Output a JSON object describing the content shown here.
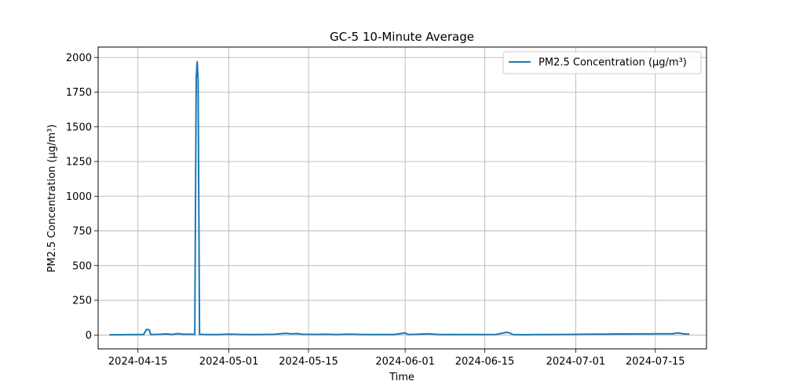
{
  "chart_data": {
    "type": "line",
    "title": "GC-5 10-Minute Average",
    "xlabel": "Time",
    "ylabel": "PM2.5 Concentration (µg/m³)",
    "xlim": [
      "2024-04-08",
      "2024-07-24"
    ],
    "ylim": [
      -100,
      2075
    ],
    "grid": true,
    "legend_position": "top-right",
    "x_ticks": [
      "2024-04-15",
      "2024-05-01",
      "2024-05-15",
      "2024-06-01",
      "2024-06-15",
      "2024-07-01",
      "2024-07-15"
    ],
    "y_ticks": [
      0,
      250,
      500,
      750,
      1000,
      1250,
      1500,
      1750,
      2000
    ],
    "colors": {
      "series": "#1f77b4",
      "grid": "#b0b0b0"
    },
    "series": [
      {
        "name": "PM2.5 Concentration (µg/m³)",
        "points": [
          [
            "2024-04-10",
            2
          ],
          [
            "2024-04-12",
            2
          ],
          [
            "2024-04-14",
            3
          ],
          [
            "2024-04-16",
            3
          ],
          [
            "2024-04-16T12:00",
            40
          ],
          [
            "2024-04-17",
            38
          ],
          [
            "2024-04-17T06:00",
            3
          ],
          [
            "2024-04-19",
            5
          ],
          [
            "2024-04-20",
            8
          ],
          [
            "2024-04-21",
            4
          ],
          [
            "2024-04-22",
            10
          ],
          [
            "2024-04-23",
            5
          ],
          [
            "2024-04-24",
            6
          ],
          [
            "2024-04-25",
            4
          ],
          [
            "2024-04-25T06:00",
            1850
          ],
          [
            "2024-04-25T10:00",
            1970
          ],
          [
            "2024-04-25T14:00",
            1840
          ],
          [
            "2024-04-25T20:00",
            5
          ],
          [
            "2024-04-27",
            3
          ],
          [
            "2024-04-29",
            3
          ],
          [
            "2024-05-01",
            6
          ],
          [
            "2024-05-03",
            4
          ],
          [
            "2024-05-05",
            3
          ],
          [
            "2024-05-07",
            4
          ],
          [
            "2024-05-09",
            5
          ],
          [
            "2024-05-11",
            12
          ],
          [
            "2024-05-12",
            8
          ],
          [
            "2024-05-13",
            10
          ],
          [
            "2024-05-14",
            5
          ],
          [
            "2024-05-16",
            4
          ],
          [
            "2024-05-18",
            5
          ],
          [
            "2024-05-20",
            3
          ],
          [
            "2024-05-22",
            6
          ],
          [
            "2024-05-24",
            4
          ],
          [
            "2024-05-26",
            3
          ],
          [
            "2024-05-28",
            4
          ],
          [
            "2024-05-30",
            3
          ],
          [
            "2024-06-01",
            15
          ],
          [
            "2024-06-01T12:00",
            4
          ],
          [
            "2024-06-03",
            5
          ],
          [
            "2024-06-05",
            9
          ],
          [
            "2024-06-07",
            3
          ],
          [
            "2024-06-09",
            4
          ],
          [
            "2024-06-11",
            3
          ],
          [
            "2024-06-13",
            4
          ],
          [
            "2024-06-15",
            3
          ],
          [
            "2024-06-17",
            4
          ],
          [
            "2024-06-19",
            20
          ],
          [
            "2024-06-19T12:00",
            12
          ],
          [
            "2024-06-20",
            3
          ],
          [
            "2024-06-22",
            2
          ],
          [
            "2024-06-24",
            3
          ],
          [
            "2024-06-26",
            3
          ],
          [
            "2024-06-28",
            4
          ],
          [
            "2024-06-30",
            4
          ],
          [
            "2024-07-02",
            5
          ],
          [
            "2024-07-04",
            6
          ],
          [
            "2024-07-06",
            6
          ],
          [
            "2024-07-08",
            7
          ],
          [
            "2024-07-10",
            7
          ],
          [
            "2024-07-12",
            8
          ],
          [
            "2024-07-14",
            8
          ],
          [
            "2024-07-16",
            9
          ],
          [
            "2024-07-18",
            9
          ],
          [
            "2024-07-19",
            15
          ],
          [
            "2024-07-20",
            8
          ],
          [
            "2024-07-21",
            6
          ]
        ]
      }
    ]
  }
}
